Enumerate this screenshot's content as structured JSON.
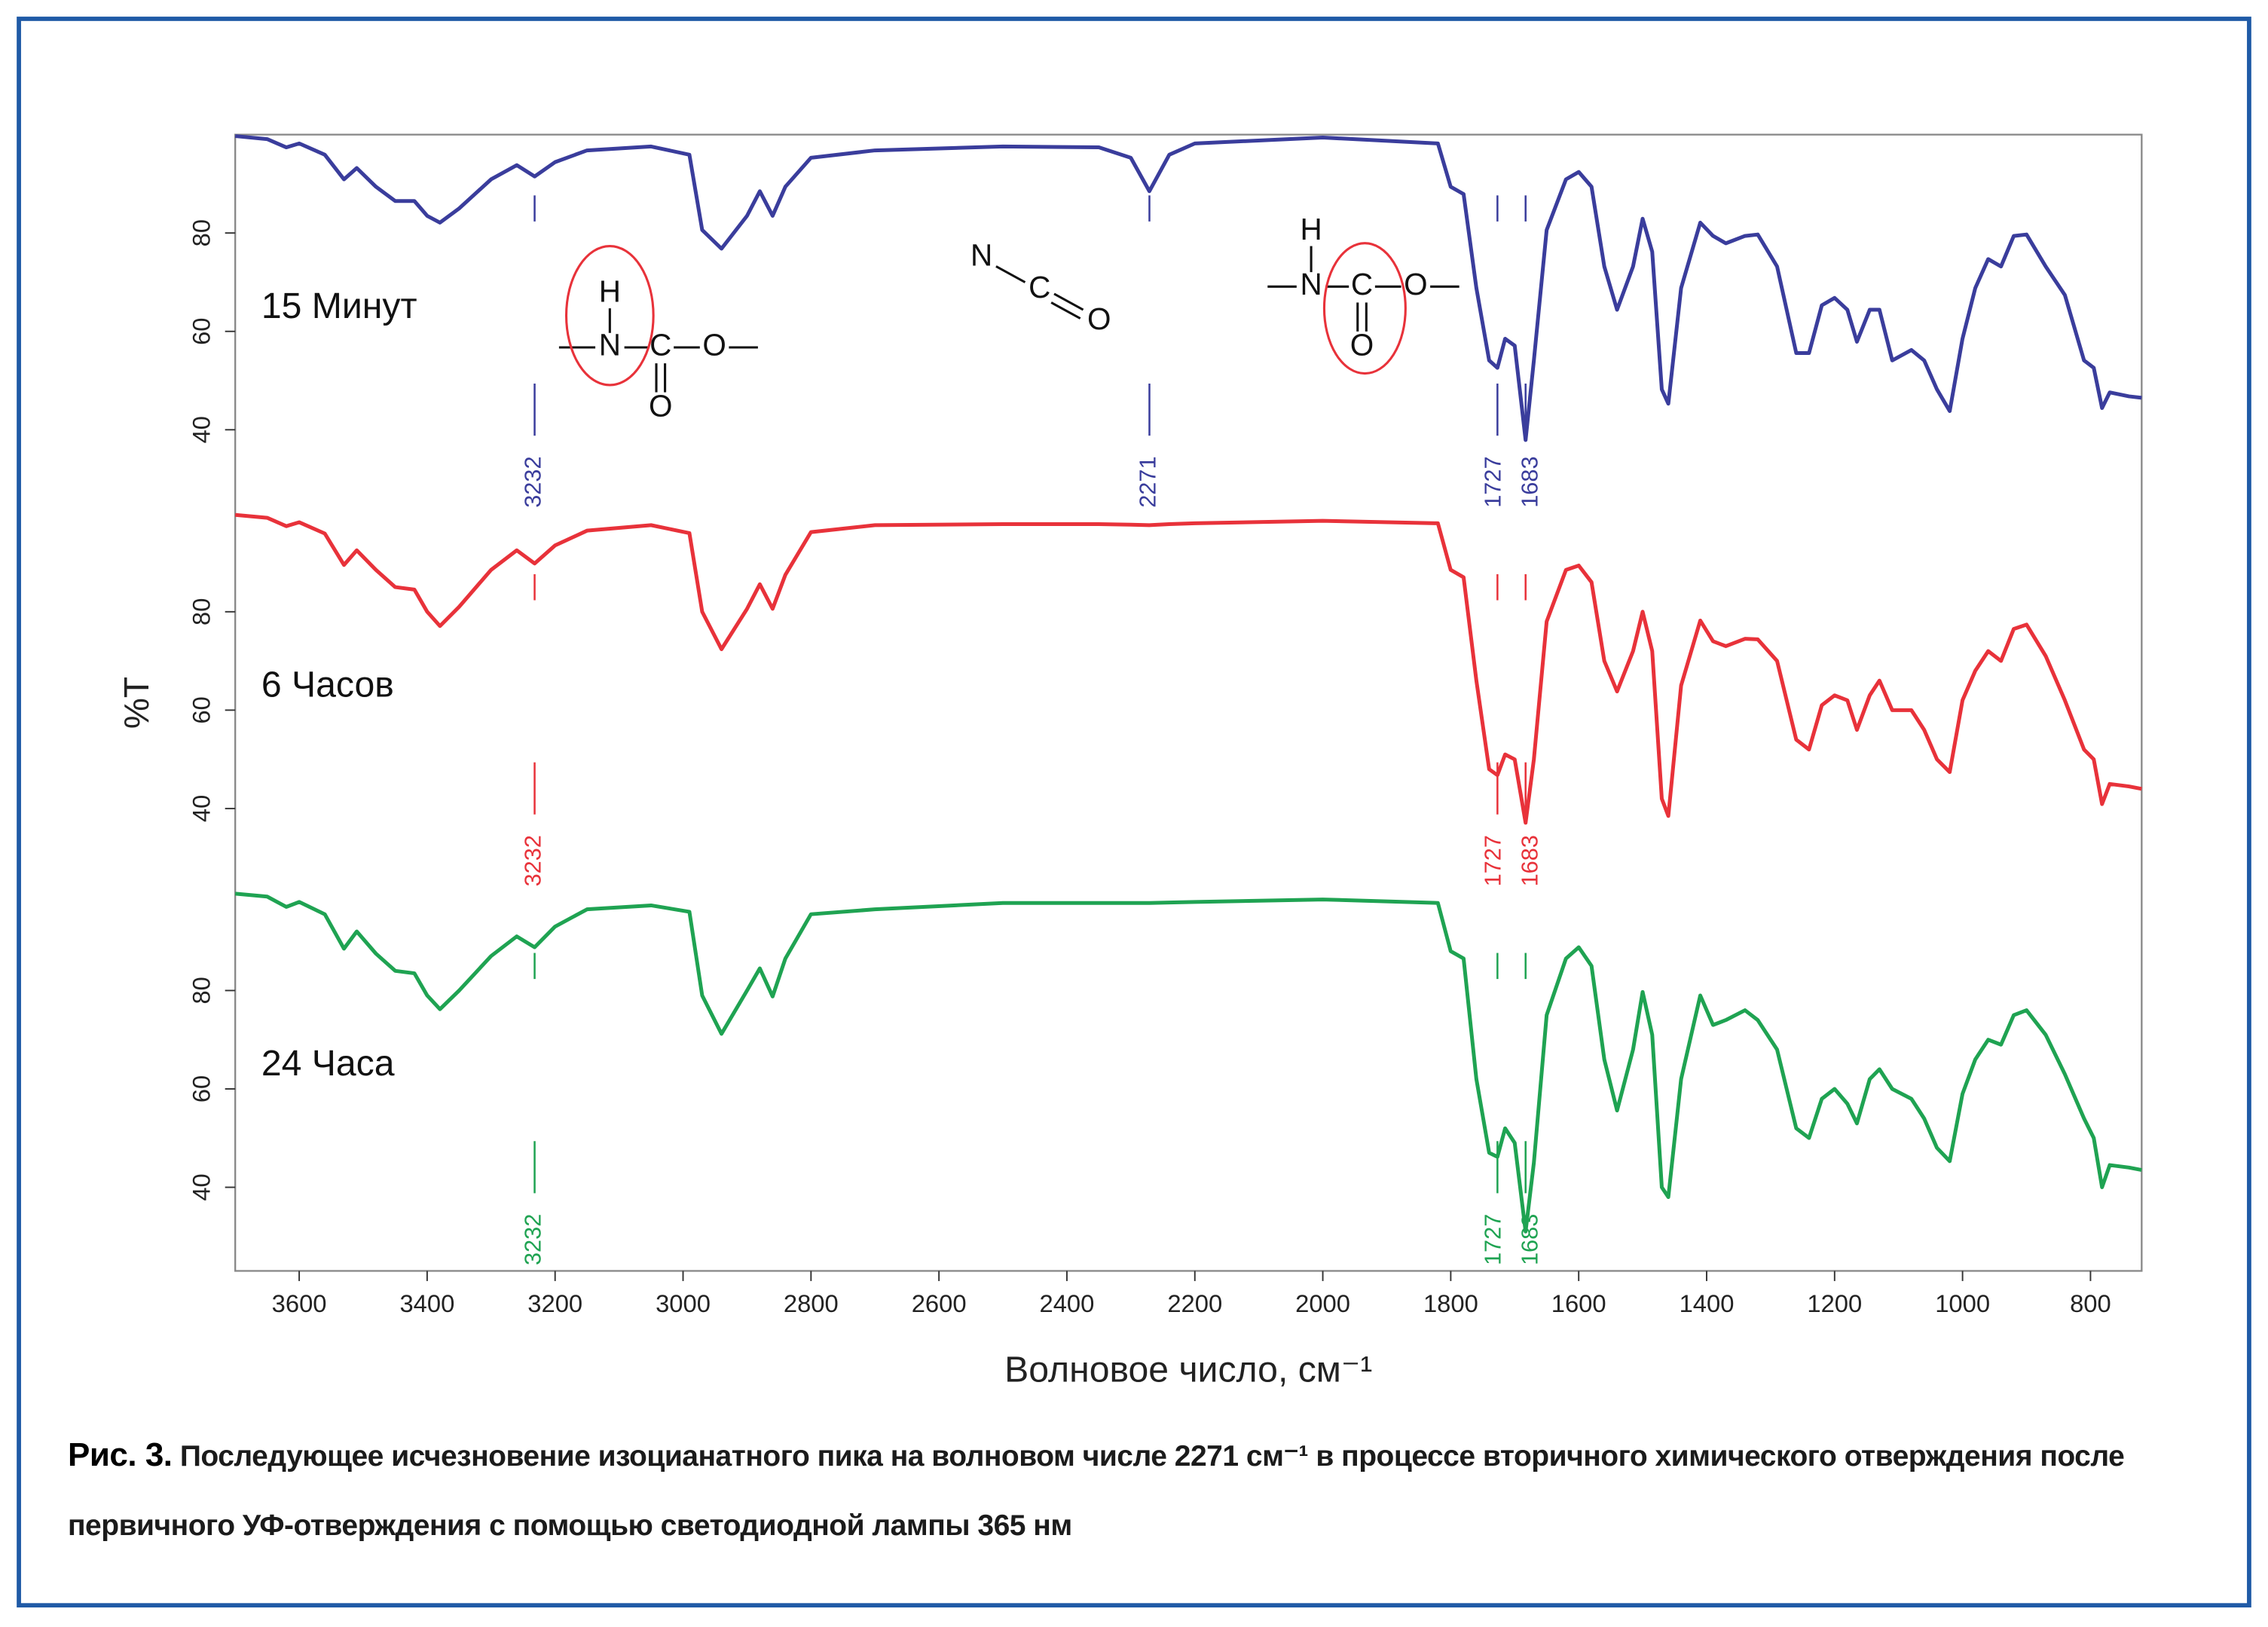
{
  "caption": {
    "label": "Рис. 3.",
    "text": "Последующее исчезновение изоцианатного пика на волновом числе 2271 см⁻¹ в процессе вторичного химического отверждения после первичного УФ-отверждения с помощью светодиодной лампы 365 нм"
  },
  "chart_data": [
    {
      "type": "line",
      "name": "15 Минут",
      "color": "#3a3d9c",
      "x": [
        3700,
        3650,
        3620,
        3600,
        3560,
        3530,
        3510,
        3480,
        3450,
        3420,
        3400,
        3380,
        3350,
        3300,
        3260,
        3232,
        3200,
        3150,
        3050,
        2990,
        2970,
        2940,
        2900,
        2880,
        2860,
        2840,
        2800,
        2700,
        2500,
        2350,
        2300,
        2271,
        2240,
        2200,
        2000,
        1820,
        1800,
        1780,
        1760,
        1740,
        1727,
        1715,
        1700,
        1683,
        1670,
        1650,
        1620,
        1600,
        1580,
        1560,
        1540,
        1515,
        1500,
        1485,
        1470,
        1460,
        1440,
        1410,
        1390,
        1370,
        1340,
        1320,
        1290,
        1260,
        1240,
        1220,
        1200,
        1180,
        1165,
        1145,
        1130,
        1110,
        1080,
        1060,
        1040,
        1020,
        1000,
        980,
        960,
        940,
        920,
        900,
        870,
        840,
        810,
        795,
        782,
        770,
        740,
        720
      ],
      "values": [
        99.7,
        99.1,
        97.4,
        98.2,
        95.9,
        90.9,
        93.2,
        89.4,
        86.5,
        86.5,
        83.5,
        82.1,
        85,
        90.9,
        93.8,
        91.5,
        94.4,
        96.8,
        97.6,
        95.9,
        80.6,
        76.8,
        83.5,
        88.5,
        83.5,
        89.4,
        95.3,
        96.8,
        97.6,
        97.4,
        95.3,
        88.5,
        95.9,
        98.2,
        99.4,
        98.2,
        89.4,
        87.9,
        68.8,
        54.1,
        52.6,
        58.5,
        57.1,
        37.9,
        54.1,
        80.6,
        90.9,
        92.4,
        89.4,
        73.2,
        64.4,
        73.2,
        82.9,
        76.2,
        48.2,
        45.3,
        68.8,
        82.1,
        79.4,
        77.9,
        79.4,
        79.7,
        73.2,
        55.6,
        55.6,
        65.3,
        66.8,
        64.4,
        57.9,
        64.4,
        64.4,
        54.1,
        56.2,
        54.1,
        48.2,
        43.8,
        58.5,
        68.8,
        74.7,
        73.2,
        79.4,
        79.7,
        73.2,
        67.4,
        54.1,
        52.6,
        44.4,
        47.6,
        46.8,
        46.5
      ],
      "xlim": [
        3700,
        720
      ],
      "ylim": [
        23,
        100
      ],
      "yticks": [
        40,
        60,
        80
      ],
      "markers": [
        3232,
        2271,
        1727,
        1683
      ],
      "structures": [
        [
          "H",
          "N",
          "C",
          "O",
          "O"
        ],
        [
          "N",
          "C",
          "O"
        ],
        [
          "H",
          "N",
          "C",
          "O",
          "O"
        ]
      ]
    },
    {
      "type": "line",
      "name": "6 Часов",
      "color": "#e8323a",
      "ylabel": "%T",
      "x": [
        3700,
        3650,
        3620,
        3600,
        3560,
        3530,
        3510,
        3480,
        3450,
        3420,
        3400,
        3380,
        3350,
        3300,
        3260,
        3232,
        3200,
        3150,
        3050,
        2990,
        2970,
        2940,
        2900,
        2880,
        2860,
        2840,
        2800,
        2700,
        2500,
        2350,
        2300,
        2271,
        2240,
        2200,
        2000,
        1820,
        1800,
        1780,
        1760,
        1740,
        1727,
        1715,
        1700,
        1683,
        1670,
        1650,
        1620,
        1600,
        1580,
        1560,
        1540,
        1515,
        1500,
        1485,
        1470,
        1460,
        1440,
        1410,
        1390,
        1370,
        1340,
        1320,
        1290,
        1260,
        1240,
        1220,
        1200,
        1180,
        1165,
        1145,
        1130,
        1110,
        1080,
        1060,
        1040,
        1020,
        1000,
        980,
        960,
        940,
        920,
        900,
        870,
        840,
        810,
        795,
        782,
        770,
        740,
        720
      ],
      "values": [
        99.7,
        99.1,
        97.4,
        98.2,
        95.9,
        89.5,
        92.5,
        88.5,
        85,
        84.5,
        80,
        77.1,
        81,
        88.5,
        92.5,
        89.8,
        93.5,
        96.5,
        97.6,
        96,
        80,
        72.4,
        80.6,
        85.6,
        80.6,
        87.5,
        96.2,
        97.6,
        97.8,
        97.8,
        97.7,
        97.6,
        97.8,
        98,
        98.5,
        98,
        88.5,
        87,
        66,
        48,
        46.8,
        51,
        50,
        37.1,
        50,
        78,
        88.5,
        89.4,
        86,
        70,
        63.8,
        72,
        80,
        72,
        42,
        38.5,
        65,
        78.2,
        74,
        73,
        74.5,
        74.4,
        70,
        54,
        52,
        61,
        63,
        62,
        56,
        63,
        66,
        60,
        60,
        56,
        50,
        47.4,
        62,
        68,
        72,
        70,
        76.5,
        77.4,
        71,
        62,
        52,
        50,
        40.9,
        45,
        44.5,
        44
      ],
      "xlim": [
        3700,
        720
      ],
      "ylim": [
        23,
        100
      ],
      "yticks": [
        40,
        60,
        80
      ],
      "markers": [
        3232,
        1727,
        1683
      ]
    },
    {
      "type": "line",
      "name": "24 Часа",
      "color": "#1fa352",
      "xlabel": "Волновое число, см⁻¹",
      "x": [
        3700,
        3650,
        3620,
        3600,
        3560,
        3530,
        3510,
        3480,
        3450,
        3420,
        3400,
        3380,
        3350,
        3300,
        3260,
        3232,
        3200,
        3150,
        3050,
        2990,
        2970,
        2940,
        2900,
        2880,
        2860,
        2840,
        2800,
        2700,
        2500,
        2350,
        2300,
        2271,
        2240,
        2200,
        2000,
        1820,
        1800,
        1780,
        1760,
        1740,
        1727,
        1715,
        1700,
        1683,
        1670,
        1650,
        1620,
        1600,
        1580,
        1560,
        1540,
        1515,
        1500,
        1485,
        1470,
        1460,
        1440,
        1410,
        1390,
        1370,
        1340,
        1320,
        1290,
        1260,
        1240,
        1220,
        1200,
        1180,
        1165,
        1145,
        1130,
        1110,
        1080,
        1060,
        1040,
        1020,
        1000,
        980,
        960,
        940,
        920,
        900,
        870,
        840,
        810,
        795,
        782,
        770,
        740,
        720
      ],
      "values": [
        99.7,
        99.1,
        97,
        98,
        95.5,
        88.5,
        92,
        87.5,
        84,
        83.5,
        79,
        76.2,
        80,
        87,
        91,
        88.8,
        93,
        96.5,
        97.3,
        96,
        79,
        71.2,
        80,
        84.5,
        78.8,
        86.5,
        95.5,
        96.5,
        97.8,
        97.8,
        97.8,
        97.8,
        97.9,
        98,
        98.5,
        97.8,
        88,
        86.5,
        62,
        47,
        46.2,
        52,
        49,
        31,
        45,
        75,
        86.5,
        88.8,
        85,
        66,
        55.6,
        68,
        79.7,
        71,
        40,
        38,
        62,
        79,
        73,
        74,
        76,
        74,
        68,
        52,
        50,
        58,
        60,
        57,
        53,
        62,
        64,
        60,
        58,
        54,
        48,
        45.3,
        59,
        66,
        70,
        69,
        75,
        76,
        71,
        63,
        54,
        50,
        40,
        44.5,
        44,
        43.5
      ],
      "xlim": [
        3700,
        720
      ],
      "ylim": [
        23,
        100
      ],
      "yticks": [
        40,
        60,
        80
      ],
      "xticks": [
        3600,
        3400,
        3200,
        3000,
        2800,
        2600,
        2400,
        2200,
        2000,
        1800,
        1600,
        1400,
        1200,
        1000,
        800
      ],
      "markers": [
        3232,
        1727,
        1683
      ]
    }
  ]
}
